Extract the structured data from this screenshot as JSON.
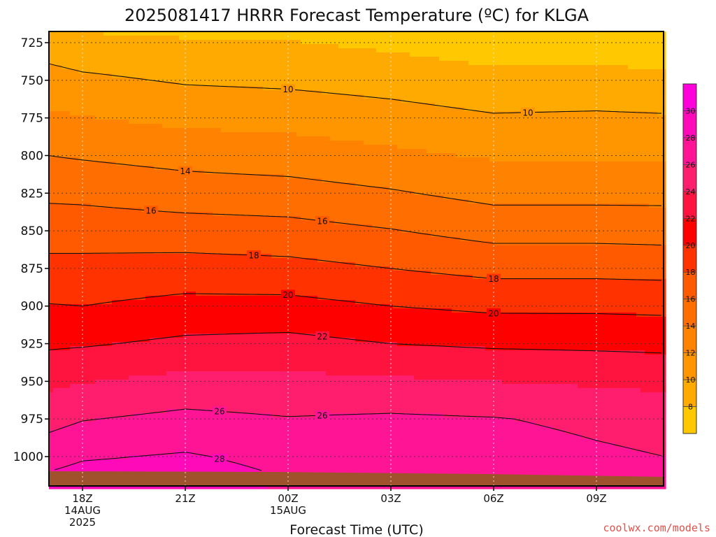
{
  "chart_data": {
    "type": "heatmap",
    "title": "2025081417 HRRR Forecast Temperature (ºC) for KLGA",
    "xlabel": "Forecast Time (UTC)",
    "ylabel": "",
    "credit": "coolwx.com/models",
    "y_unit": "hPa",
    "y_range": [
      1010,
      718
    ],
    "x_range_hours_after_18Z": [
      -1,
      11
    ],
    "y_ticks": [
      "725",
      "750",
      "775",
      "800",
      "825",
      "850",
      "875",
      "900",
      "925",
      "950",
      "975",
      "1000"
    ],
    "x_ticks": [
      {
        "hour": 0,
        "lines": [
          "18Z",
          "14AUG",
          "2025"
        ]
      },
      {
        "hour": 3,
        "lines": [
          "21Z"
        ]
      },
      {
        "hour": 6,
        "lines": [
          "00Z",
          "15AUG"
        ]
      },
      {
        "hour": 9,
        "lines": [
          "03Z"
        ]
      },
      {
        "hour": 12,
        "lines": [
          "06Z"
        ]
      },
      {
        "hour": 15,
        "lines": [
          "09Z"
        ]
      }
    ],
    "grid": true,
    "colorbar": {
      "levels": [
        6,
        8,
        10,
        12,
        14,
        16,
        18,
        20,
        22,
        24,
        26,
        28,
        30,
        32
      ],
      "tick_labels": [
        "8",
        "10",
        "12",
        "14",
        "16",
        "18",
        "20",
        "22",
        "24",
        "26",
        "28",
        "30"
      ],
      "colors": [
        "#ffc800",
        "#ffaa00",
        "#ff9600",
        "#ff8200",
        "#ff6e00",
        "#ff5a00",
        "#ff3200",
        "#ff0000",
        "#ff1440",
        "#ff1e6e",
        "#ff1496",
        "#ff0ab9",
        "#ff00dc"
      ]
    },
    "ground_color": "#a0522d",
    "contours": [
      {
        "level": 10,
        "label_at_hour": [
          6,
          13
        ]
      },
      {
        "level": 14,
        "label_at_hour": [
          3
        ]
      },
      {
        "level": 16,
        "label_at_hour": [
          2,
          7
        ]
      },
      {
        "level": 18,
        "label_at_hour": [
          5,
          12
        ]
      },
      {
        "level": 20,
        "label_at_hour": [
          6,
          12
        ]
      },
      {
        "level": 22,
        "label_at_hour": [
          7
        ]
      },
      {
        "level": 26,
        "label_at_hour": [
          4,
          7
        ]
      },
      {
        "level": 28,
        "label_at_hour": [
          4
        ]
      }
    ],
    "temperature_profiles": [
      {
        "hour": -1,
        "pressure": [
          718,
          725,
          750,
          775,
          800,
          825,
          850,
          875,
          900,
          925,
          950,
          975,
          1000,
          1010
        ],
        "temp": [
          8.3,
          9.0,
          10.8,
          12.4,
          14.0,
          15.6,
          17.1,
          18.6,
          20.1,
          21.7,
          23.5,
          25.3,
          27.2,
          28.0
        ]
      },
      {
        "hour": 0,
        "pressure": [
          718,
          725,
          750,
          775,
          800,
          825,
          850,
          875,
          900,
          925,
          950,
          975,
          1000,
          1010
        ],
        "temp": [
          8.0,
          8.6,
          10.4,
          12.1,
          13.8,
          15.5,
          17.1,
          18.6,
          20.0,
          21.8,
          23.9,
          25.9,
          27.8,
          28.5
        ]
      },
      {
        "hour": 3,
        "pressure": [
          718,
          725,
          750,
          775,
          800,
          825,
          850,
          875,
          900,
          925,
          950,
          975,
          1000,
          1010
        ],
        "temp": [
          7.6,
          8.3,
          9.8,
          11.5,
          13.3,
          15.0,
          16.9,
          18.8,
          20.6,
          22.4,
          24.6,
          26.5,
          28.2,
          28.7
        ]
      },
      {
        "hour": 6,
        "pressure": [
          718,
          725,
          750,
          775,
          800,
          825,
          850,
          875,
          900,
          925,
          950,
          975,
          1000,
          1010
        ],
        "temp": [
          7.6,
          8.1,
          9.6,
          11.3,
          13.0,
          14.8,
          16.7,
          18.6,
          20.6,
          22.6,
          24.5,
          26.1,
          27.4,
          27.8
        ]
      },
      {
        "hour": 9,
        "pressure": [
          718,
          725,
          750,
          775,
          800,
          825,
          850,
          875,
          900,
          925,
          950,
          975,
          1000,
          1010
        ],
        "temp": [
          7.0,
          7.6,
          9.2,
          10.8,
          12.4,
          14.2,
          16.1,
          18.0,
          20.0,
          22.0,
          24.3,
          26.3,
          27.0,
          27.2
        ]
      },
      {
        "hour": 12,
        "pressure": [
          718,
          725,
          750,
          775,
          800,
          825,
          850,
          875,
          900,
          925,
          950,
          975,
          1000,
          1010
        ],
        "temp": [
          6.2,
          7.0,
          8.6,
          10.2,
          11.8,
          13.4,
          15.3,
          17.4,
          19.6,
          21.7,
          24.0,
          26.1,
          26.9,
          27.0
        ]
      },
      {
        "hour": 15,
        "pressure": [
          718,
          725,
          750,
          775,
          800,
          825,
          850,
          875,
          900,
          925,
          950,
          975,
          1000,
          1010
        ],
        "temp": [
          6.4,
          7.0,
          8.7,
          10.3,
          11.8,
          13.4,
          15.3,
          17.4,
          19.6,
          21.6,
          23.7,
          25.6,
          26.3,
          26.4
        ]
      },
      {
        "hour": 17,
        "pressure": [
          718,
          725,
          750,
          775,
          800,
          825,
          850,
          875,
          900,
          925,
          950,
          975,
          1000,
          1010
        ],
        "temp": [
          6.0,
          6.7,
          8.5,
          10.2,
          11.8,
          13.4,
          15.2,
          17.3,
          19.5,
          21.5,
          23.5,
          25.3,
          26.0,
          26.1
        ]
      }
    ]
  }
}
